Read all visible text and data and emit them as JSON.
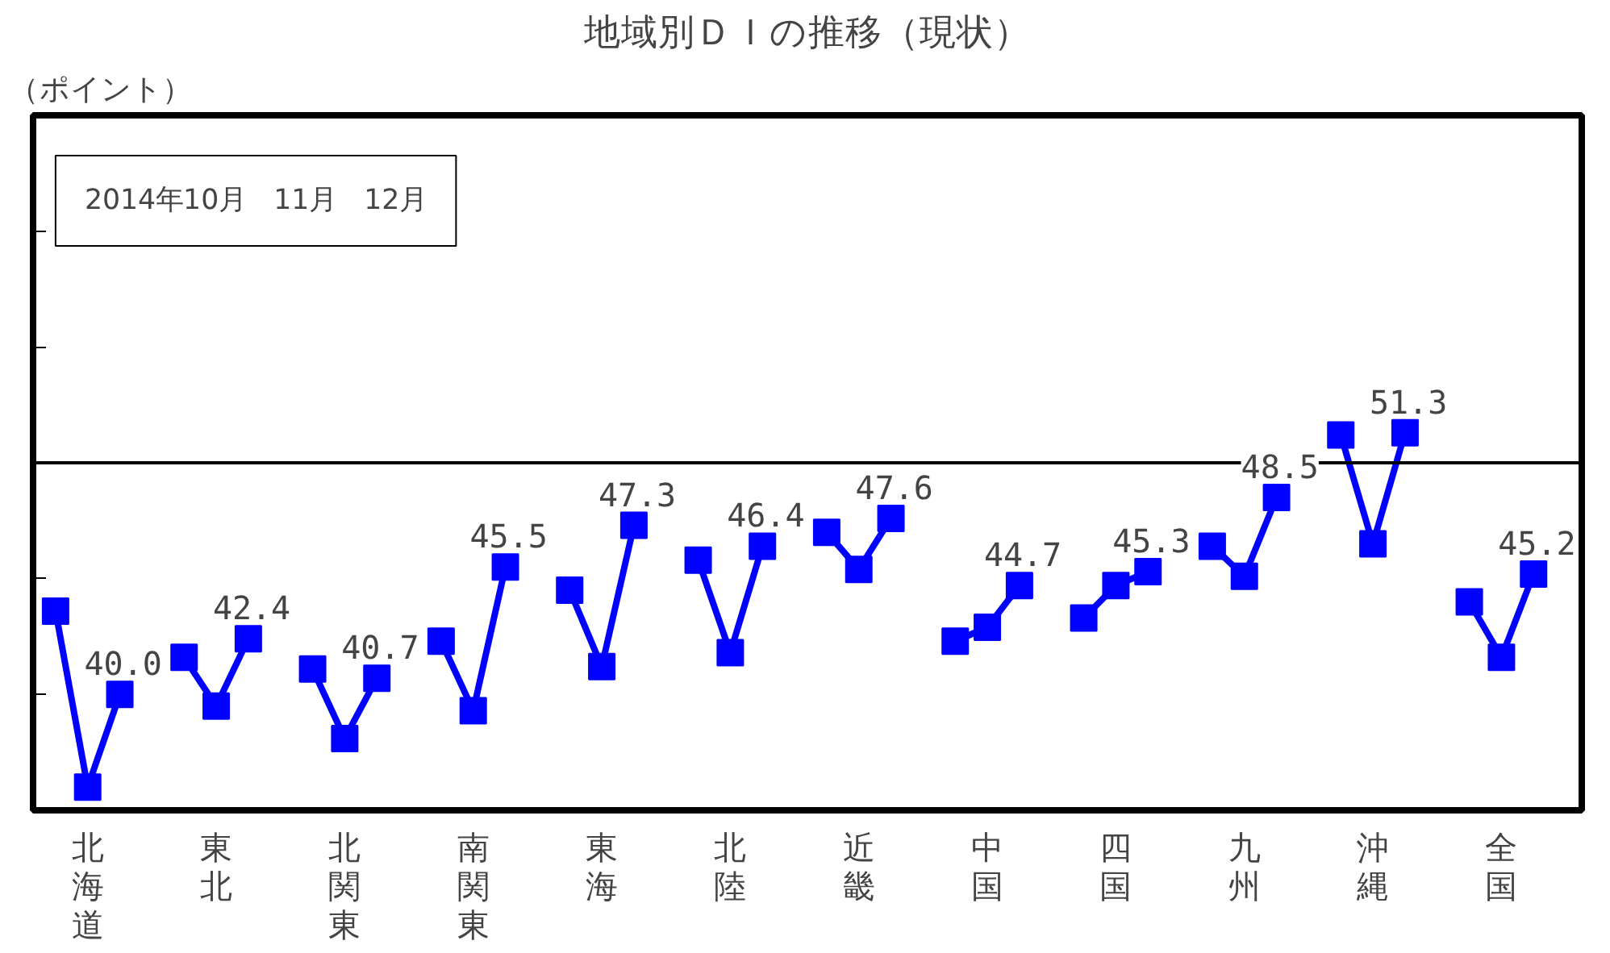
{
  "chart_data": {
    "type": "line",
    "title": "地域別ＤＩの推移（現状）",
    "ylabel": "（ポイント）",
    "annotations": [
      "2014年10月　11月　12月"
    ],
    "categories": [
      null,
      "北海道",
      null,
      null,
      null,
      "東北",
      null,
      null,
      null,
      "北関東",
      null,
      null,
      null,
      "南関東",
      null,
      null,
      null,
      "東海",
      null,
      null,
      null,
      "北陸",
      null,
      null,
      null,
      "近畿",
      null,
      null,
      null,
      "中国",
      null,
      null,
      null,
      "四国",
      null,
      null,
      null,
      "九州",
      null,
      null,
      null,
      "沖縄",
      null,
      null,
      null,
      "全国",
      null,
      null
    ],
    "series": [
      {
        "color": "#0000ff",
        "values": [
          43.6,
          36.0,
          40.0,
          null,
          41.6,
          39.5,
          42.4,
          null,
          41.1,
          38.1,
          40.7,
          null,
          42.3,
          39.3,
          45.5,
          null,
          44.5,
          41.2,
          47.3,
          null,
          45.8,
          41.8,
          46.4,
          null,
          47.0,
          45.4,
          47.6,
          null,
          42.3,
          42.9,
          44.7,
          null,
          43.3,
          44.7,
          45.3,
          null,
          46.4,
          45.1,
          48.5,
          null,
          51.2,
          46.5,
          51.3,
          null,
          44.0,
          41.6,
          45.2,
          null
        ],
        "value_labels": [
          null,
          null,
          "40.0",
          null,
          null,
          null,
          "42.4",
          null,
          null,
          null,
          "40.7",
          null,
          null,
          null,
          "45.5",
          null,
          null,
          null,
          "47.3",
          null,
          null,
          null,
          "46.4",
          null,
          null,
          null,
          "47.6",
          null,
          null,
          null,
          "44.7",
          null,
          null,
          null,
          "45.3",
          null,
          null,
          null,
          "48.5",
          null,
          null,
          null,
          "51.3",
          null,
          null,
          null,
          "45.2",
          null
        ]
      }
    ],
    "ylim": [
      35,
      65
    ],
    "yticks": [
      {
        "value": 40,
        "label": null
      },
      {
        "value": 45,
        "label": null
      },
      {
        "value": 50,
        "label": null
      },
      {
        "value": 55,
        "label": null
      },
      {
        "value": 60,
        "label": null
      }
    ],
    "ref_lines": [
      {
        "axis": "y",
        "value": 50,
        "color": "#000000"
      }
    ],
    "marker": "square",
    "line_style": "solid",
    "grid": false,
    "tick_labels": "x"
  }
}
